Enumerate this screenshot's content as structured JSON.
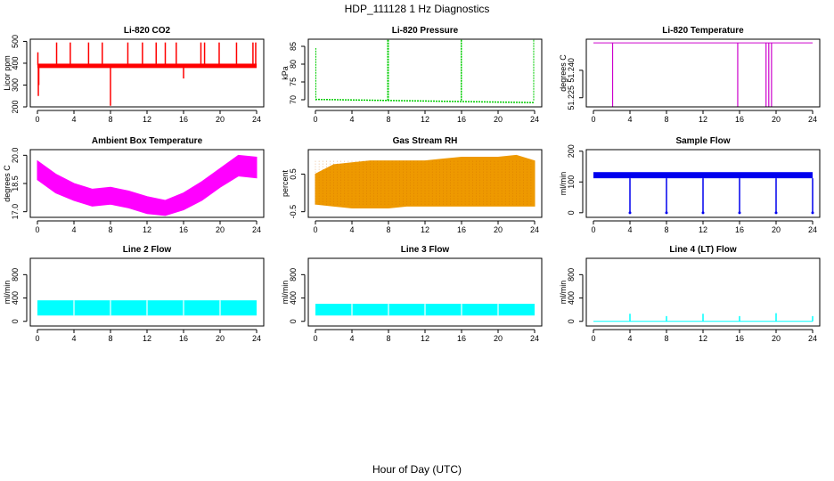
{
  "title": "HDP_111128  1 Hz Diagnostics",
  "xlabel": "Hour of Day (UTC)",
  "chart_data": [
    {
      "id": "co2",
      "type": "line",
      "title": "Li-820 CO2",
      "ylabel": "Licor ppm",
      "color": "#ff0000",
      "xlim": [
        0,
        24
      ],
      "ylim": [
        200,
        510
      ],
      "xticks": [
        0,
        4,
        8,
        12,
        16,
        20,
        24
      ],
      "yticks": [
        200,
        300,
        400,
        500
      ],
      "ytick_labels": [
        "200",
        "300",
        "400",
        "500"
      ],
      "series": [
        {
          "baseline": 390,
          "band": [
            378,
            398
          ],
          "spikes": [
            {
              "x": 0.05,
              "y": 450
            },
            {
              "x": 0.1,
              "y": 250
            },
            {
              "x": 0.15,
              "y": 300
            },
            {
              "x": 2.1,
              "y": 495
            },
            {
              "x": 3.6,
              "y": 495
            },
            {
              "x": 5.6,
              "y": 495
            },
            {
              "x": 7.1,
              "y": 495
            },
            {
              "x": 8.0,
              "y": 205
            },
            {
              "x": 9.9,
              "y": 495
            },
            {
              "x": 11.5,
              "y": 495
            },
            {
              "x": 13.0,
              "y": 495
            },
            {
              "x": 14.0,
              "y": 495
            },
            {
              "x": 15.2,
              "y": 495
            },
            {
              "x": 16.0,
              "y": 330
            },
            {
              "x": 17.9,
              "y": 495
            },
            {
              "x": 18.3,
              "y": 495
            },
            {
              "x": 19.9,
              "y": 495
            },
            {
              "x": 21.8,
              "y": 495
            },
            {
              "x": 23.6,
              "y": 495
            },
            {
              "x": 23.9,
              "y": 495
            }
          ]
        }
      ]
    },
    {
      "id": "pres",
      "type": "line",
      "title": "Li-820 Pressure",
      "ylabel": "kPa",
      "color": "#00cc00",
      "xlim": [
        0,
        24
      ],
      "ylim": [
        68,
        87
      ],
      "xticks": [
        0,
        4,
        8,
        12,
        16,
        20,
        24
      ],
      "yticks": [
        70,
        75,
        80,
        85
      ],
      "ytick_labels": [
        "70",
        "75",
        "80",
        "85"
      ],
      "series": [
        {
          "points": [
            {
              "x": 0,
              "y": 70.1
            },
            {
              "x": 8,
              "y": 69.8
            },
            {
              "x": 16,
              "y": 69.5
            },
            {
              "x": 24,
              "y": 69.2
            }
          ],
          "spikes": [
            {
              "x": 0.05,
              "y": 84.5
            },
            {
              "x": 7.9,
              "y": 86.8
            },
            {
              "x": 8.0,
              "y": 86.8
            },
            {
              "x": 15.95,
              "y": 86.8
            },
            {
              "x": 16.0,
              "y": 86.8
            },
            {
              "x": 23.9,
              "y": 86.8
            }
          ]
        }
      ]
    },
    {
      "id": "temp820",
      "type": "line",
      "title": "Li-820 Temperature",
      "ylabel": "degrees C",
      "color": "#cc00cc",
      "xlim": [
        0,
        24
      ],
      "ylim": [
        51.22,
        51.257
      ],
      "xticks": [
        0,
        4,
        8,
        12,
        16,
        20,
        24
      ],
      "yticks": [
        51.225,
        51.24
      ],
      "ytick_labels": [
        "51.225",
        "51.240"
      ],
      "series": [
        {
          "level": 51.255,
          "dips": [
            {
              "x": 2.1,
              "y": 51.22
            },
            {
              "x": 15.8,
              "y": 51.22
            },
            {
              "x": 18.9,
              "y": 51.22
            },
            {
              "x": 19.2,
              "y": 51.22
            },
            {
              "x": 19.5,
              "y": 51.22
            }
          ]
        }
      ]
    },
    {
      "id": "ambtemp",
      "type": "area",
      "title": "Ambient Box Temperature",
      "ylabel": "degrees C",
      "color": "#ff00ff",
      "xlim": [
        0,
        24
      ],
      "ylim": [
        16.7,
        20.3
      ],
      "xticks": [
        0,
        4,
        8,
        12,
        16,
        20,
        24
      ],
      "yticks": [
        17.0,
        18.5,
        20.0
      ],
      "ytick_labels": [
        "17.0",
        "18.5",
        "20.0"
      ],
      "series": [
        {
          "upper": [
            {
              "x": 0,
              "y": 19.7
            },
            {
              "x": 2,
              "y": 19.0
            },
            {
              "x": 4,
              "y": 18.5
            },
            {
              "x": 6,
              "y": 18.2
            },
            {
              "x": 8,
              "y": 18.3
            },
            {
              "x": 10,
              "y": 18.1
            },
            {
              "x": 12,
              "y": 17.8
            },
            {
              "x": 14,
              "y": 17.6
            },
            {
              "x": 16,
              "y": 18.0
            },
            {
              "x": 18,
              "y": 18.6
            },
            {
              "x": 20,
              "y": 19.3
            },
            {
              "x": 22,
              "y": 20.0
            },
            {
              "x": 24,
              "y": 19.9
            }
          ],
          "lower": [
            {
              "x": 0,
              "y": 18.7
            },
            {
              "x": 2,
              "y": 18.0
            },
            {
              "x": 4,
              "y": 17.6
            },
            {
              "x": 6,
              "y": 17.3
            },
            {
              "x": 8,
              "y": 17.4
            },
            {
              "x": 10,
              "y": 17.2
            },
            {
              "x": 12,
              "y": 16.9
            },
            {
              "x": 14,
              "y": 16.8
            },
            {
              "x": 16,
              "y": 17.1
            },
            {
              "x": 18,
              "y": 17.6
            },
            {
              "x": 20,
              "y": 18.3
            },
            {
              "x": 22,
              "y": 18.9
            },
            {
              "x": 24,
              "y": 18.8
            }
          ]
        }
      ]
    },
    {
      "id": "rh",
      "type": "area",
      "title": "Gas Stream RH",
      "ylabel": "percent",
      "color": "#ee9900",
      "xlim": [
        0,
        24
      ],
      "ylim": [
        -0.65,
        1.15
      ],
      "xticks": [
        0,
        4,
        8,
        12,
        16,
        20,
        24
      ],
      "yticks": [
        -0.5,
        0.5
      ],
      "ytick_labels": [
        "-0.5",
        "0.5"
      ],
      "series": [
        {
          "upper": [
            {
              "x": 0,
              "y": 0.5
            },
            {
              "x": 2,
              "y": 0.75
            },
            {
              "x": 4,
              "y": 0.8
            },
            {
              "x": 6,
              "y": 0.85
            },
            {
              "x": 8,
              "y": 0.85
            },
            {
              "x": 10,
              "y": 0.85
            },
            {
              "x": 12,
              "y": 0.85
            },
            {
              "x": 14,
              "y": 0.9
            },
            {
              "x": 16,
              "y": 0.95
            },
            {
              "x": 18,
              "y": 0.95
            },
            {
              "x": 20,
              "y": 0.95
            },
            {
              "x": 22,
              "y": 1.0
            },
            {
              "x": 24,
              "y": 0.85
            }
          ],
          "lower": [
            {
              "x": 0,
              "y": -0.3
            },
            {
              "x": 2,
              "y": -0.35
            },
            {
              "x": 4,
              "y": -0.4
            },
            {
              "x": 6,
              "y": -0.4
            },
            {
              "x": 8,
              "y": -0.4
            },
            {
              "x": 10,
              "y": -0.35
            },
            {
              "x": 12,
              "y": -0.35
            },
            {
              "x": 14,
              "y": -0.35
            },
            {
              "x": 16,
              "y": -0.35
            },
            {
              "x": 18,
              "y": -0.35
            },
            {
              "x": 20,
              "y": -0.35
            },
            {
              "x": 22,
              "y": -0.35
            },
            {
              "x": 24,
              "y": -0.35
            }
          ]
        }
      ]
    },
    {
      "id": "sflow",
      "type": "line",
      "title": "Sample Flow",
      "ylabel": "ml/min",
      "color": "#0000ee",
      "xlim": [
        0,
        24
      ],
      "ylim": [
        -15,
        205
      ],
      "xticks": [
        0,
        4,
        8,
        12,
        16,
        20,
        24
      ],
      "yticks": [
        0,
        100,
        200
      ],
      "ytick_labels": [
        "0",
        "100",
        "200"
      ],
      "series": [
        {
          "band": [
            112,
            132
          ],
          "dips": [
            {
              "x": 4,
              "y": 0
            },
            {
              "x": 8,
              "y": 0
            },
            {
              "x": 12,
              "y": 0
            },
            {
              "x": 16,
              "y": 0
            },
            {
              "x": 20,
              "y": 0
            },
            {
              "x": 24,
              "y": 0
            }
          ]
        }
      ]
    },
    {
      "id": "l2flow",
      "type": "area",
      "title": "Line 2 Flow",
      "ylabel": "ml/min",
      "color": "#00ffff",
      "xlim": [
        0,
        24
      ],
      "ylim": [
        -80,
        1080
      ],
      "xticks": [
        0,
        4,
        8,
        12,
        16,
        20,
        24
      ],
      "yticks": [
        0,
        400,
        800
      ],
      "ytick_labels": [
        "0",
        "400",
        "800"
      ],
      "series": [
        {
          "band": [
            100,
            360
          ],
          "gaps": [
            4,
            8,
            12,
            16,
            20
          ]
        }
      ]
    },
    {
      "id": "l3flow",
      "type": "area",
      "title": "Line 3 Flow",
      "ylabel": "ml/min",
      "color": "#00ffff",
      "xlim": [
        0,
        24
      ],
      "ylim": [
        -80,
        1080
      ],
      "xticks": [
        0,
        4,
        8,
        12,
        16,
        20,
        24
      ],
      "yticks": [
        0,
        400,
        800
      ],
      "ytick_labels": [
        "0",
        "400",
        "800"
      ],
      "series": [
        {
          "band": [
            100,
            300
          ],
          "gaps": [
            4,
            8,
            12,
            16,
            20
          ]
        }
      ]
    },
    {
      "id": "l4flow",
      "type": "line",
      "title": "Line 4 (LT) Flow",
      "ylabel": "ml/min",
      "color": "#00ffff",
      "xlim": [
        0,
        24
      ],
      "ylim": [
        -80,
        1080
      ],
      "xticks": [
        0,
        4,
        8,
        12,
        16,
        20,
        24
      ],
      "yticks": [
        0,
        400,
        800
      ],
      "ytick_labels": [
        "0",
        "400",
        "800"
      ],
      "series": [
        {
          "level": 0,
          "spikes": [
            {
              "x": 4,
              "y": 130
            },
            {
              "x": 8,
              "y": 90
            },
            {
              "x": 12,
              "y": 130
            },
            {
              "x": 16,
              "y": 90
            },
            {
              "x": 20,
              "y": 140
            },
            {
              "x": 24,
              "y": 90
            }
          ]
        }
      ]
    }
  ]
}
